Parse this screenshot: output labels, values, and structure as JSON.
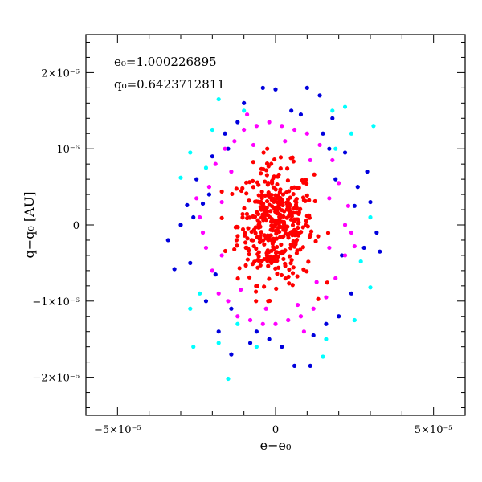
{
  "chart_data": {
    "type": "scatter",
    "xlabel": "e−e₀",
    "ylabel": "q−q₀ [AU]",
    "xlim": [
      -6e-05,
      6e-05
    ],
    "ylim": [
      -2.5e-06,
      2.5e-06
    ],
    "x_ticks": [
      {
        "value": -5e-05,
        "label": "−5×10⁻⁵"
      },
      {
        "value": 0,
        "label": "0"
      },
      {
        "value": 5e-05,
        "label": "5×10⁻⁵"
      }
    ],
    "y_ticks": [
      {
        "value": 2e-06,
        "label": "2×10⁻⁶"
      },
      {
        "value": 1e-06,
        "label": "10⁻⁶"
      },
      {
        "value": 0,
        "label": "0"
      },
      {
        "value": -1e-06,
        "label": "−1×10⁻⁶"
      },
      {
        "value": -2e-06,
        "label": "−2×10⁻⁶"
      }
    ],
    "annotations": [
      "e₀=1.000226895",
      "q₀=0.6423712811"
    ],
    "grid": false,
    "series": [
      {
        "color": "#00ffff",
        "points": [
          [
            -3e-05,
            6.2e-07
          ],
          [
            -2.7e-05,
            9.5e-07
          ],
          [
            -2.6e-05,
            -1.6e-06
          ],
          [
            -2.7e-05,
            -1.1e-06
          ],
          [
            -1.8e-05,
            1.65e-06
          ],
          [
            -1.8e-05,
            -1.55e-06
          ],
          [
            -1.5e-05,
            -2.02e-06
          ],
          [
            -1e-05,
            1.5e-06
          ],
          [
            -1.2e-05,
            -1.3e-06
          ],
          [
            -6e-06,
            -1.6e-06
          ],
          [
            1.5e-05,
            -1.73e-06
          ],
          [
            1.8e-05,
            1.5e-06
          ],
          [
            1.9e-05,
            1e-06
          ],
          [
            2.2e-05,
            1.55e-06
          ],
          [
            2.7e-05,
            -4.8e-07
          ],
          [
            3e-05,
            -8.2e-07
          ],
          [
            3.1e-05,
            1.3e-06
          ],
          [
            3e-05,
            1e-07
          ],
          [
            -2.4e-05,
            -9e-07
          ],
          [
            2.4e-05,
            1.2e-06
          ],
          [
            -2.2e-05,
            7.5e-07
          ],
          [
            2.5e-05,
            -1.25e-06
          ],
          [
            -2e-05,
            1.25e-06
          ],
          [
            1.6e-05,
            -1.5e-06
          ]
        ]
      },
      {
        "color": "#0000dd",
        "points": [
          [
            -3.4e-05,
            -2e-07
          ],
          [
            -3.2e-05,
            -5.8e-07
          ],
          [
            -2.8e-05,
            2.6e-07
          ],
          [
            -2.7e-05,
            -5e-07
          ],
          [
            -2.5e-05,
            6e-07
          ],
          [
            -2.2e-05,
            -1e-06
          ],
          [
            -2e-05,
            9e-07
          ],
          [
            -1.8e-05,
            -1.4e-06
          ],
          [
            -1.6e-05,
            1.2e-06
          ],
          [
            -1.4e-05,
            -1.7e-06
          ],
          [
            -1e-05,
            1.6e-06
          ],
          [
            -8e-06,
            -1.55e-06
          ],
          [
            -4e-06,
            1.8e-06
          ],
          [
            -2e-06,
            -1.5e-06
          ],
          [
            0.0,
            1.78e-06
          ],
          [
            2e-06,
            -1.6e-06
          ],
          [
            5e-06,
            1.5e-06
          ],
          [
            6e-06,
            -1.85e-06
          ],
          [
            1e-05,
            1.8e-06
          ],
          [
            1.1e-05,
            -1.85e-06
          ],
          [
            1.4e-05,
            1.7e-06
          ],
          [
            1.6e-05,
            -1.3e-06
          ],
          [
            1.8e-05,
            1.4e-06
          ],
          [
            2e-05,
            -1.2e-06
          ],
          [
            2.2e-05,
            9.5e-07
          ],
          [
            2.4e-05,
            -9e-07
          ],
          [
            2.6e-05,
            5e-07
          ],
          [
            2.8e-05,
            -3e-07
          ],
          [
            3e-05,
            3e-07
          ],
          [
            3.2e-05,
            -1e-07
          ],
          [
            3.3e-05,
            -3.5e-07
          ],
          [
            2.9e-05,
            7e-07
          ],
          [
            -3e-05,
            0.0
          ],
          [
            -2.6e-05,
            1e-07
          ],
          [
            -2.3e-05,
            2.8e-07
          ],
          [
            2.5e-05,
            2.5e-07
          ],
          [
            2.1e-05,
            -4e-07
          ],
          [
            1.9e-05,
            6e-07
          ],
          [
            -1.9e-05,
            -6.5e-07
          ],
          [
            -2.1e-05,
            4e-07
          ],
          [
            1.5e-05,
            1.2e-06
          ],
          [
            -1.2e-05,
            1.35e-06
          ],
          [
            1.2e-05,
            -1.45e-06
          ],
          [
            -6e-06,
            -1.4e-06
          ],
          [
            8e-06,
            1.45e-06
          ],
          [
            -1.4e-05,
            -1.1e-06
          ],
          [
            1.7e-05,
            1e-06
          ],
          [
            -1.5e-05,
            1e-06
          ]
        ]
      },
      {
        "color": "#ff00ff",
        "points": [
          [
            -2.4e-05,
            1e-07
          ],
          [
            -2.2e-05,
            -3e-07
          ],
          [
            -2.1e-05,
            5e-07
          ],
          [
            -2e-05,
            -6e-07
          ],
          [
            -1.9e-05,
            8e-07
          ],
          [
            -1.8e-05,
            -9e-07
          ],
          [
            -1.6e-05,
            1e-06
          ],
          [
            -1.5e-05,
            -1e-06
          ],
          [
            -1.3e-05,
            1.1e-06
          ],
          [
            -1.2e-05,
            -1.2e-06
          ],
          [
            -1e-05,
            1.25e-06
          ],
          [
            -8e-06,
            -1.25e-06
          ],
          [
            -6e-06,
            1.3e-06
          ],
          [
            -4e-06,
            -1.3e-06
          ],
          [
            -2e-06,
            1.35e-06
          ],
          [
            0.0,
            -1.3e-06
          ],
          [
            2e-06,
            1.3e-06
          ],
          [
            4e-06,
            -1.25e-06
          ],
          [
            6e-06,
            1.25e-06
          ],
          [
            8e-06,
            -1.2e-06
          ],
          [
            1e-05,
            1.2e-06
          ],
          [
            1.2e-05,
            -1.1e-06
          ],
          [
            1.4e-05,
            1.05e-06
          ],
          [
            1.6e-05,
            -9.5e-07
          ],
          [
            1.8e-05,
            8.5e-07
          ],
          [
            1.9e-05,
            -7e-07
          ],
          [
            2e-05,
            5.5e-07
          ],
          [
            2.2e-05,
            -4e-07
          ],
          [
            2.3e-05,
            2.5e-07
          ],
          [
            2.4e-05,
            -1e-07
          ],
          [
            2.2e-05,
            0.0
          ],
          [
            -2.3e-05,
            -1e-07
          ],
          [
            -1.7e-05,
            3e-07
          ],
          [
            -1.7e-05,
            -4e-07
          ],
          [
            1.7e-05,
            3.5e-07
          ],
          [
            1.7e-05,
            -3e-07
          ],
          [
            -1.4e-05,
            7e-07
          ],
          [
            1.3e-05,
            -7.5e-07
          ],
          [
            -1.1e-05,
            -8.5e-07
          ],
          [
            1.1e-05,
            8.5e-07
          ],
          [
            -7e-06,
            1.05e-06
          ],
          [
            7e-06,
            -1.05e-06
          ],
          [
            -3e-06,
            -1.1e-06
          ],
          [
            3e-06,
            1.1e-06
          ],
          [
            -2.5e-05,
            3.5e-07
          ],
          [
            2.5e-05,
            -2.8e-07
          ],
          [
            -9e-06,
            1.45e-06
          ],
          [
            9e-06,
            -1.4e-06
          ]
        ]
      },
      {
        "color": "#ff0000",
        "cloud": {
          "count": 420,
          "center_x": 0.0,
          "center_y": 0.0,
          "sigma_x": 6e-06,
          "sigma_y": 3.8e-07,
          "max_x": 1.7e-05,
          "max_y": 1e-06
        }
      }
    ]
  }
}
